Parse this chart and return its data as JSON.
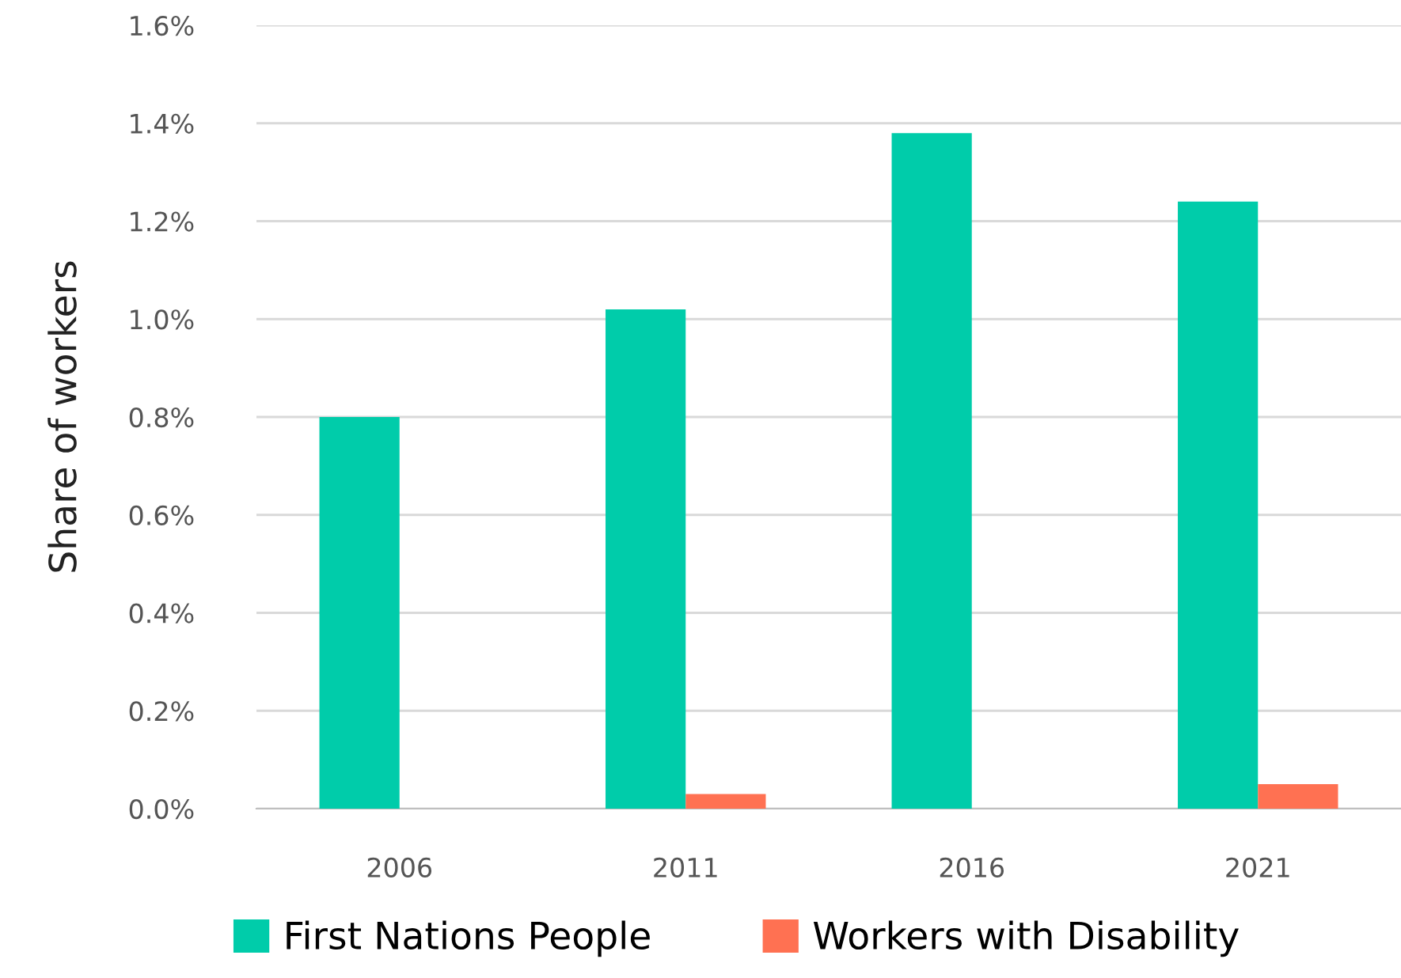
{
  "chart_data": {
    "type": "bar",
    "ylabel": "Share of workers",
    "categories": [
      "2006",
      "2011",
      "2016",
      "2021"
    ],
    "series": [
      {
        "name": "First Nations People",
        "color": "#00ccaa",
        "values": [
          0.8,
          1.02,
          1.38,
          1.24
        ]
      },
      {
        "name": "Workers with Disability",
        "color": "#ff7152",
        "values": [
          null,
          0.03,
          null,
          0.05
        ]
      }
    ],
    "ylim": [
      0,
      1.6
    ],
    "yticks": [
      {
        "value": 0,
        "label": "0.0%"
      },
      {
        "value": 0.2,
        "label": "0.2%"
      },
      {
        "value": 0.4,
        "label": "0.4%"
      },
      {
        "value": 0.6,
        "label": "0.6%"
      },
      {
        "value": 0.8,
        "label": "0.8%"
      },
      {
        "value": 1.0,
        "label": "1.0%"
      },
      {
        "value": 1.2,
        "label": "1.2%"
      },
      {
        "value": 1.4,
        "label": "1.4%"
      },
      {
        "value": 1.6,
        "label": "1.6%"
      }
    ],
    "grid": "y",
    "legend": "bottom"
  }
}
